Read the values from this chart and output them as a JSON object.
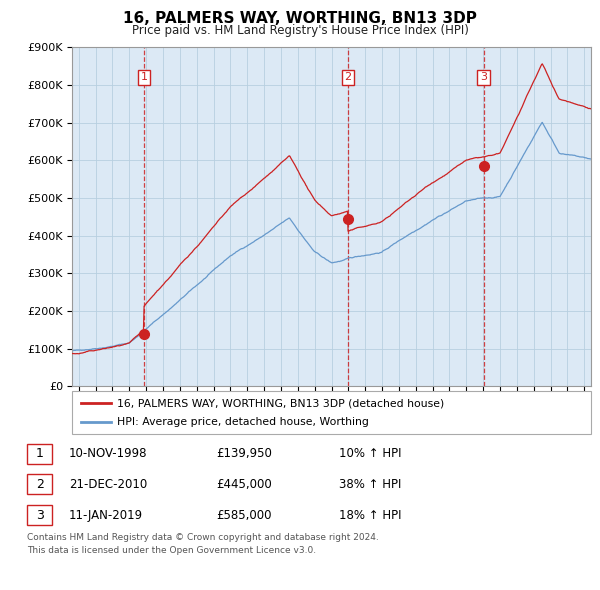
{
  "title": "16, PALMERS WAY, WORTHING, BN13 3DP",
  "subtitle": "Price paid vs. HM Land Registry's House Price Index (HPI)",
  "red_label": "16, PALMERS WAY, WORTHING, BN13 3DP (detached house)",
  "blue_label": "HPI: Average price, detached house, Worthing",
  "transactions": [
    {
      "num": 1,
      "date": "10-NOV-1998",
      "price": 139950,
      "price_str": "£139,950",
      "pct": "10%",
      "dir": "↑"
    },
    {
      "num": 2,
      "date": "21-DEC-2010",
      "price": 445000,
      "price_str": "£445,000",
      "pct": "38%",
      "dir": "↑"
    },
    {
      "num": 3,
      "date": "11-JAN-2019",
      "price": 585000,
      "price_str": "£585,000",
      "pct": "18%",
      "dir": "↑"
    }
  ],
  "transaction_years": [
    1998.87,
    2010.97,
    2019.03
  ],
  "transaction_prices": [
    139950,
    445000,
    585000
  ],
  "footnote1": "Contains HM Land Registry data © Crown copyright and database right 2024.",
  "footnote2": "This data is licensed under the Open Government Licence v3.0.",
  "ylim": [
    0,
    900000
  ],
  "yticks": [
    0,
    100000,
    200000,
    300000,
    400000,
    500000,
    600000,
    700000,
    800000,
    900000
  ],
  "chart_bg": "#dce9f5",
  "fig_bg": "#ffffff",
  "grid_color": "#b8cfe0",
  "red_color": "#cc2222",
  "blue_color": "#6699cc",
  "xlim_left": 1994.6,
  "xlim_right": 2025.4
}
